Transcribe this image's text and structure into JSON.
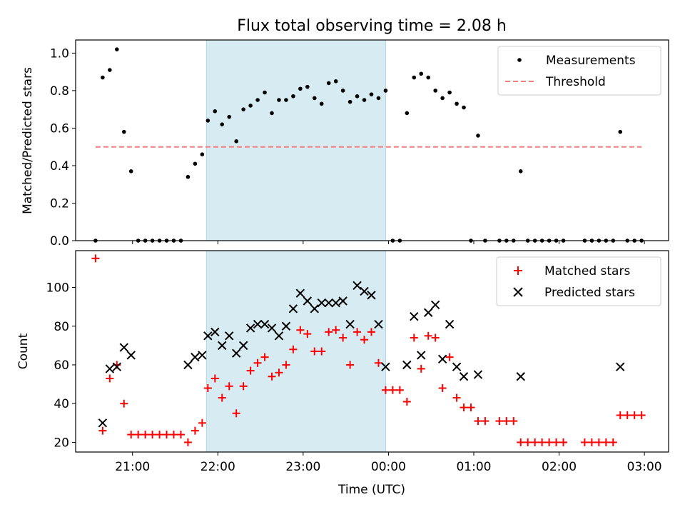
{
  "chart_data": [
    {
      "type": "scatter",
      "title": "Flux total observing time = 2.08 h",
      "ylabel": "Matched/Predicted stars",
      "ylim": [
        0,
        1.07
      ],
      "yticks": [
        "0.0",
        "0.2",
        "0.4",
        "0.6",
        "0.8",
        "1.0"
      ],
      "highlight_span": [
        "21:52",
        "23:58"
      ],
      "threshold": {
        "name": "Threshold",
        "value": 0.5,
        "x_range": [
          "20:34",
          "02:58"
        ],
        "color": "#f08080"
      },
      "legend": {
        "position": "top-right"
      },
      "series": [
        {
          "name": "Measurements",
          "color": "#000000",
          "marker": "dot",
          "points": [
            [
              "20:34",
              0.0
            ],
            [
              "20:39",
              0.87
            ],
            [
              "20:44",
              0.91
            ],
            [
              "20:49",
              1.02
            ],
            [
              "20:54",
              0.58
            ],
            [
              "20:59",
              0.37
            ],
            [
              "21:04",
              0.0
            ],
            [
              "21:09",
              0.0
            ],
            [
              "21:14",
              0.0
            ],
            [
              "21:19",
              0.0
            ],
            [
              "21:24",
              0.0
            ],
            [
              "21:29",
              0.0
            ],
            [
              "21:34",
              0.0
            ],
            [
              "21:39",
              0.34
            ],
            [
              "21:44",
              0.41
            ],
            [
              "21:49",
              0.46
            ],
            [
              "21:53",
              0.64
            ],
            [
              "21:58",
              0.69
            ],
            [
              "22:03",
              0.62
            ],
            [
              "22:08",
              0.66
            ],
            [
              "22:13",
              0.53
            ],
            [
              "22:18",
              0.7
            ],
            [
              "22:23",
              0.72
            ],
            [
              "22:28",
              0.75
            ],
            [
              "22:33",
              0.79
            ],
            [
              "22:38",
              0.68
            ],
            [
              "22:43",
              0.75
            ],
            [
              "22:48",
              0.75
            ],
            [
              "22:53",
              0.77
            ],
            [
              "22:58",
              0.81
            ],
            [
              "23:03",
              0.82
            ],
            [
              "23:08",
              0.76
            ],
            [
              "23:13",
              0.73
            ],
            [
              "23:18",
              0.84
            ],
            [
              "23:23",
              0.85
            ],
            [
              "23:28",
              0.8
            ],
            [
              "23:33",
              0.74
            ],
            [
              "23:38",
              0.77
            ],
            [
              "23:43",
              0.75
            ],
            [
              "23:48",
              0.78
            ],
            [
              "23:53",
              0.76
            ],
            [
              "23:58",
              0.8
            ],
            [
              "00:03",
              0.0
            ],
            [
              "00:08",
              0.0
            ],
            [
              "00:13",
              0.68
            ],
            [
              "00:18",
              0.87
            ],
            [
              "00:23",
              0.89
            ],
            [
              "00:28",
              0.87
            ],
            [
              "00:33",
              0.8
            ],
            [
              "00:38",
              0.76
            ],
            [
              "00:43",
              0.79
            ],
            [
              "00:48",
              0.73
            ],
            [
              "00:53",
              0.71
            ],
            [
              "00:58",
              0.0
            ],
            [
              "01:03",
              0.56
            ],
            [
              "01:08",
              0.0
            ],
            [
              "01:18",
              0.0
            ],
            [
              "01:23",
              0.0
            ],
            [
              "01:28",
              0.0
            ],
            [
              "01:33",
              0.37
            ],
            [
              "01:38",
              0.0
            ],
            [
              "01:43",
              0.0
            ],
            [
              "01:48",
              0.0
            ],
            [
              "01:53",
              0.0
            ],
            [
              "01:58",
              0.0
            ],
            [
              "02:03",
              0.0
            ],
            [
              "02:18",
              0.0
            ],
            [
              "02:23",
              0.0
            ],
            [
              "02:28",
              0.0
            ],
            [
              "02:33",
              0.0
            ],
            [
              "02:38",
              0.0
            ],
            [
              "02:43",
              0.58
            ],
            [
              "02:48",
              0.0
            ],
            [
              "02:53",
              0.0
            ],
            [
              "02:58",
              0.0
            ]
          ]
        }
      ]
    },
    {
      "type": "scatter",
      "xlabel": "Time (UTC)",
      "ylabel": "Count",
      "ylim": [
        15,
        119
      ],
      "yticks": [
        "20",
        "40",
        "60",
        "80",
        "100"
      ],
      "xticks": [
        "21:00",
        "22:00",
        "23:00",
        "00:00",
        "01:00",
        "02:00",
        "03:00"
      ],
      "x_domain": [
        "20:20",
        "03:17"
      ],
      "highlight_span": [
        "21:52",
        "23:58"
      ],
      "legend": {
        "position": "top-right"
      },
      "series": [
        {
          "name": "Matched stars",
          "color": "#ff0000",
          "marker": "plus",
          "points": [
            [
              "20:34",
              115
            ],
            [
              "20:39",
              26
            ],
            [
              "20:44",
              53
            ],
            [
              "20:49",
              60
            ],
            [
              "20:54",
              40
            ],
            [
              "20:59",
              24
            ],
            [
              "21:04",
              24
            ],
            [
              "21:09",
              24
            ],
            [
              "21:14",
              24
            ],
            [
              "21:19",
              24
            ],
            [
              "21:24",
              24
            ],
            [
              "21:29",
              24
            ],
            [
              "21:34",
              24
            ],
            [
              "21:39",
              20
            ],
            [
              "21:44",
              26
            ],
            [
              "21:49",
              30
            ],
            [
              "21:53",
              48
            ],
            [
              "21:58",
              53
            ],
            [
              "22:03",
              43
            ],
            [
              "22:08",
              49
            ],
            [
              "22:13",
              35
            ],
            [
              "22:18",
              49
            ],
            [
              "22:23",
              57
            ],
            [
              "22:28",
              61
            ],
            [
              "22:33",
              64
            ],
            [
              "22:38",
              54
            ],
            [
              "22:43",
              56
            ],
            [
              "22:48",
              60
            ],
            [
              "22:53",
              68
            ],
            [
              "22:58",
              78
            ],
            [
              "23:03",
              76
            ],
            [
              "23:08",
              67
            ],
            [
              "23:13",
              67
            ],
            [
              "23:18",
              77
            ],
            [
              "23:23",
              78
            ],
            [
              "23:28",
              74
            ],
            [
              "23:33",
              60
            ],
            [
              "23:38",
              77
            ],
            [
              "23:43",
              73
            ],
            [
              "23:48",
              77
            ],
            [
              "23:53",
              61
            ],
            [
              "23:58",
              47
            ],
            [
              "00:03",
              47
            ],
            [
              "00:08",
              47
            ],
            [
              "00:13",
              41
            ],
            [
              "00:18",
              74
            ],
            [
              "00:23",
              58
            ],
            [
              "00:28",
              75
            ],
            [
              "00:33",
              74
            ],
            [
              "00:38",
              48
            ],
            [
              "00:43",
              64
            ],
            [
              "00:48",
              43
            ],
            [
              "00:53",
              38
            ],
            [
              "00:58",
              38
            ],
            [
              "01:03",
              31
            ],
            [
              "01:08",
              31
            ],
            [
              "01:18",
              31
            ],
            [
              "01:23",
              31
            ],
            [
              "01:28",
              31
            ],
            [
              "01:33",
              20
            ],
            [
              "01:38",
              20
            ],
            [
              "01:43",
              20
            ],
            [
              "01:48",
              20
            ],
            [
              "01:53",
              20
            ],
            [
              "01:58",
              20
            ],
            [
              "02:03",
              20
            ],
            [
              "02:18",
              20
            ],
            [
              "02:23",
              20
            ],
            [
              "02:28",
              20
            ],
            [
              "02:33",
              20
            ],
            [
              "02:38",
              20
            ],
            [
              "02:43",
              34
            ],
            [
              "02:48",
              34
            ],
            [
              "02:53",
              34
            ],
            [
              "02:58",
              34
            ]
          ]
        },
        {
          "name": "Predicted stars",
          "color": "#000000",
          "marker": "x",
          "points": [
            [
              "20:39",
              30
            ],
            [
              "20:44",
              58
            ],
            [
              "20:49",
              59
            ],
            [
              "20:54",
              69
            ],
            [
              "20:59",
              65
            ],
            [
              "21:39",
              60
            ],
            [
              "21:44",
              64
            ],
            [
              "21:49",
              65
            ],
            [
              "21:53",
              75
            ],
            [
              "21:58",
              77
            ],
            [
              "22:03",
              70
            ],
            [
              "22:08",
              75
            ],
            [
              "22:13",
              66
            ],
            [
              "22:18",
              70
            ],
            [
              "22:23",
              79
            ],
            [
              "22:28",
              81
            ],
            [
              "22:33",
              81
            ],
            [
              "22:38",
              79
            ],
            [
              "22:43",
              75
            ],
            [
              "22:48",
              80
            ],
            [
              "22:53",
              89
            ],
            [
              "22:58",
              97
            ],
            [
              "23:03",
              93
            ],
            [
              "23:08",
              89
            ],
            [
              "23:13",
              92
            ],
            [
              "23:18",
              92
            ],
            [
              "23:23",
              92
            ],
            [
              "23:28",
              93
            ],
            [
              "23:33",
              81
            ],
            [
              "23:38",
              101
            ],
            [
              "23:43",
              98
            ],
            [
              "23:48",
              96
            ],
            [
              "23:53",
              81
            ],
            [
              "23:58",
              59
            ],
            [
              "00:13",
              60
            ],
            [
              "00:18",
              85
            ],
            [
              "00:23",
              65
            ],
            [
              "00:28",
              87
            ],
            [
              "00:33",
              91
            ],
            [
              "00:38",
              63
            ],
            [
              "00:43",
              81
            ],
            [
              "00:48",
              59
            ],
            [
              "00:53",
              54
            ],
            [
              "01:03",
              55
            ],
            [
              "01:33",
              54
            ],
            [
              "02:43",
              59
            ]
          ]
        }
      ]
    }
  ]
}
